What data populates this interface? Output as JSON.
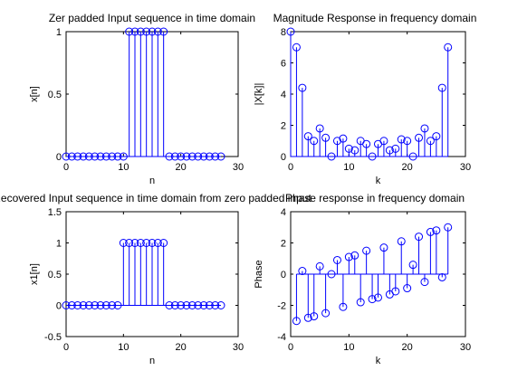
{
  "figure": {
    "background": "#ffffff",
    "stem_color": "#0000ff",
    "axis_color": "#000000"
  },
  "chart_data": [
    {
      "type": "stem",
      "title": "Zer padded Input sequence in time domain",
      "xlabel": "n",
      "ylabel": "x[n]",
      "xlim": [
        0,
        30
      ],
      "ylim": [
        0,
        1
      ],
      "xticks": [
        0,
        10,
        20,
        30
      ],
      "yticks": [
        0,
        0.5,
        1
      ],
      "ytick_labels": [
        "0",
        "0.5",
        "1"
      ],
      "grid": false,
      "x": [
        0,
        1,
        2,
        3,
        4,
        5,
        6,
        7,
        8,
        9,
        10,
        11,
        12,
        13,
        14,
        15,
        16,
        17,
        18,
        19,
        20,
        21,
        22,
        23,
        24,
        25,
        26,
        27
      ],
      "values": [
        0,
        0,
        0,
        0,
        0,
        0,
        0,
        0,
        0,
        0,
        0,
        1,
        1,
        1,
        1,
        1,
        1,
        1,
        0,
        0,
        0,
        0,
        0,
        0,
        0,
        0,
        0,
        0
      ]
    },
    {
      "type": "stem",
      "title": "Magnitude Response in frequency domain",
      "xlabel": "k",
      "ylabel": "|X[k]|",
      "xlim": [
        0,
        30
      ],
      "ylim": [
        0,
        8
      ],
      "xticks": [
        0,
        10,
        20,
        30
      ],
      "yticks": [
        0,
        2,
        4,
        6,
        8
      ],
      "ytick_labels": [
        "0",
        "2",
        "4",
        "6",
        "8"
      ],
      "grid": false,
      "x": [
        0,
        1,
        2,
        3,
        4,
        5,
        6,
        7,
        8,
        9,
        10,
        11,
        12,
        13,
        14,
        15,
        16,
        17,
        18,
        19,
        20,
        21,
        22,
        23,
        24,
        25,
        26,
        27
      ],
      "values": [
        8.0,
        7.0,
        4.4,
        1.3,
        1.0,
        1.8,
        1.2,
        0.0,
        1.0,
        1.15,
        0.5,
        0.4,
        1.0,
        0.8,
        0.0,
        0.8,
        1.0,
        0.4,
        0.5,
        1.1,
        1.0,
        0.0,
        1.2,
        1.8,
        1.0,
        1.3,
        4.4,
        7.0
      ]
    },
    {
      "type": "stem",
      "title": "Recovered Input sequence in time domain from zero padded input",
      "xlabel": "n",
      "ylabel": "x1[n]",
      "xlim": [
        0,
        30
      ],
      "ylim": [
        -0.5,
        1.5
      ],
      "xticks": [
        0,
        10,
        20,
        30
      ],
      "yticks": [
        -0.5,
        0,
        0.5,
        1,
        1.5
      ],
      "ytick_labels": [
        "-0.5",
        "0",
        "0.5",
        "1",
        "1.5"
      ],
      "grid": false,
      "x": [
        0,
        1,
        2,
        3,
        4,
        5,
        6,
        7,
        8,
        9,
        10,
        11,
        12,
        13,
        14,
        15,
        16,
        17,
        18,
        19,
        20,
        21,
        22,
        23,
        24,
        25,
        26,
        27
      ],
      "values": [
        0,
        0,
        0,
        0,
        0,
        0,
        0,
        0,
        0,
        0,
        1,
        1,
        1,
        1,
        1,
        1,
        1,
        1,
        0,
        0,
        0,
        0,
        0,
        0,
        0,
        0,
        0,
        0
      ]
    },
    {
      "type": "stem",
      "title": "Phase response in frequency domain",
      "xlabel": "k",
      "ylabel": "Phase",
      "xlim": [
        0,
        30
      ],
      "ylim": [
        -4,
        4
      ],
      "xticks": [
        0,
        10,
        20,
        30
      ],
      "yticks": [
        -4,
        -2,
        0,
        2,
        4
      ],
      "ytick_labels": [
        "-4",
        "-2",
        "0",
        "2",
        "4"
      ],
      "grid": false,
      "x": [
        1,
        2,
        3,
        4,
        5,
        6,
        7,
        8,
        9,
        10,
        11,
        12,
        13,
        14,
        15,
        16,
        17,
        18,
        19,
        20,
        21,
        22,
        23,
        24,
        25,
        26,
        27
      ],
      "values": [
        -3.0,
        0.2,
        -2.8,
        -2.7,
        0.5,
        -2.5,
        0.0,
        0.9,
        -2.1,
        1.1,
        1.2,
        -1.8,
        1.5,
        -1.6,
        -1.5,
        1.7,
        -1.3,
        -1.1,
        2.1,
        -0.9,
        0.6,
        2.4,
        -0.5,
        2.7,
        2.8,
        -0.2,
        3.0
      ]
    }
  ]
}
